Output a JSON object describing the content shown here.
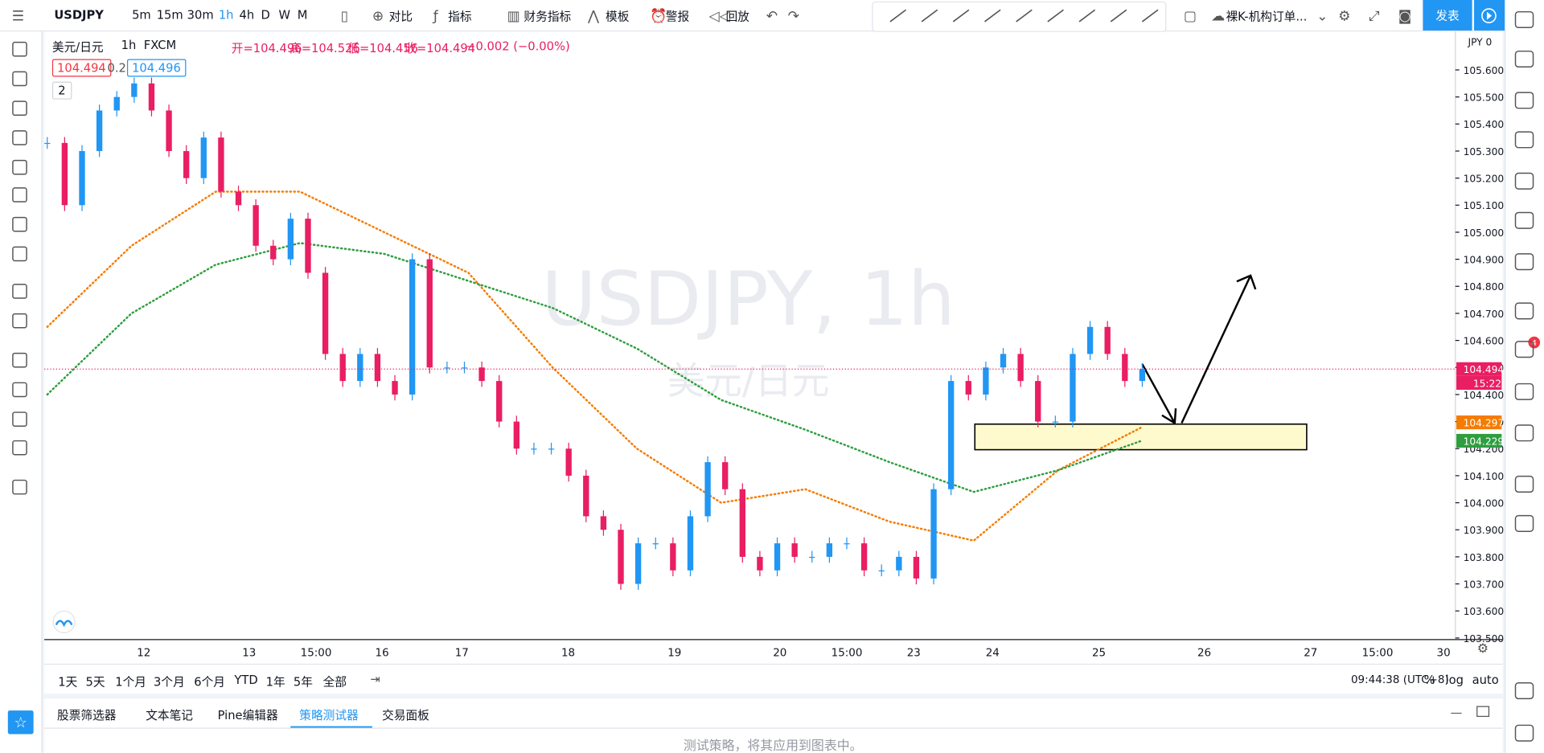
{
  "top_toolbar": {
    "symbol": "USDJPY",
    "intervals": [
      "5m",
      "15m",
      "30m",
      "1h",
      "4h",
      "D",
      "W",
      "M"
    ],
    "active_interval": 3,
    "buttons": [
      "对比",
      "指标",
      "财务指标",
      "模板",
      "警报",
      "回放"
    ],
    "layout_name": "裸K-机构订单...",
    "publish": "发表"
  },
  "legend": {
    "name": "美元/日元",
    "interval": "1h",
    "exchange": "FXCM",
    "ohlc": [
      "开=104.496",
      "高=104.526",
      "低=104.456",
      "收=104.494",
      "−0.002 (−0.00%)"
    ],
    "bid": "104.494",
    "spread": "0.2",
    "ask": "104.496",
    "indicators_toggle": "2"
  },
  "chart": {
    "type": "candlestick",
    "watermark": "USDJPY, 1h",
    "watermark_sub": "美元/日元",
    "currency": "JPY 0",
    "up_color": "#2196f3",
    "down_color": "#e91e63",
    "close": [
      105.33,
      105.1,
      105.3,
      105.45,
      105.5,
      105.55,
      105.45,
      105.3,
      105.2,
      105.35,
      105.15,
      105.1,
      104.95,
      104.9,
      105.05,
      104.85,
      104.55,
      104.45,
      104.55,
      104.45,
      104.4,
      104.9,
      104.5,
      104.5,
      104.5,
      104.45,
      104.3,
      104.2,
      104.2,
      104.2,
      104.1,
      103.95,
      103.9,
      103.7,
      103.85,
      103.85,
      103.75,
      103.95,
      104.15,
      104.05,
      103.8,
      103.75,
      103.85,
      103.8,
      103.8,
      103.85,
      103.85,
      103.75,
      103.75,
      103.8,
      103.72,
      104.05,
      104.45,
      104.4,
      104.5,
      104.55,
      104.45,
      104.3,
      104.3,
      104.55,
      104.65,
      104.55,
      104.45,
      104.494
    ],
    "ma_fast": {
      "color": "#f57c00",
      "values": [
        104.65,
        104.95,
        105.15,
        105.15,
        105.0,
        104.85,
        104.5,
        104.2,
        104.0,
        104.05,
        103.93,
        103.86,
        104.12,
        104.28
      ]
    },
    "ma_slow": {
      "color": "#2e9e3f",
      "values": [
        104.4,
        104.7,
        104.88,
        104.96,
        104.92,
        104.82,
        104.72,
        104.57,
        104.38,
        104.27,
        104.15,
        104.04,
        104.12,
        104.23
      ]
    },
    "ylim": [
      103.494,
      105.742
    ],
    "yticks": [
      {
        "value": 103.5,
        "label": "103.500"
      },
      {
        "value": 103.6,
        "label": "103.600"
      },
      {
        "value": 103.7,
        "label": "103.700"
      },
      {
        "value": 103.8,
        "label": "103.800"
      },
      {
        "value": 103.9,
        "label": "103.900"
      },
      {
        "value": 104.0,
        "label": "104.000"
      },
      {
        "value": 104.1,
        "label": "104.100"
      },
      {
        "value": 104.2,
        "label": "104.200"
      },
      {
        "value": 104.3,
        "label": "104.300"
      },
      {
        "value": 104.4,
        "label": "104.400"
      },
      {
        "value": 104.5,
        "label": "104.500"
      },
      {
        "value": 104.6,
        "label": "104.600"
      },
      {
        "value": 104.7,
        "label": "104.700"
      },
      {
        "value": 104.8,
        "label": "104.800"
      },
      {
        "value": 104.9,
        "label": "104.900"
      },
      {
        "value": 105.0,
        "label": "105.000"
      },
      {
        "value": 105.1,
        "label": "105.100"
      },
      {
        "value": 105.2,
        "label": "105.200"
      },
      {
        "value": 105.3,
        "label": "105.300"
      },
      {
        "value": 105.4,
        "label": "105.400"
      },
      {
        "value": 105.5,
        "label": "105.500"
      },
      {
        "value": 105.6,
        "label": "105.600"
      }
    ],
    "x_labels": [
      "12",
      "13",
      "15:00",
      "16",
      "17",
      "18",
      "19",
      "20",
      "15:00",
      "23",
      "24",
      "25",
      "26",
      "27",
      "15:00",
      "30"
    ],
    "last_price": 104.494,
    "countdown": "15:22",
    "ma_fast_price": 104.297,
    "ma_slow_price": 104.229
  },
  "bottom_bar": {
    "ranges": [
      "1天",
      "5天",
      "1个月",
      "3个月",
      "6个月",
      "YTD",
      "1年",
      "5年",
      "全部"
    ],
    "clock": "09:44:38 (UTC+8)",
    "scale_options": [
      "%",
      "log",
      "auto"
    ]
  },
  "panel": {
    "tabs": [
      "股票筛选器",
      "文本笔记",
      "Pine编辑器",
      "策略测试器",
      "交易面板"
    ],
    "active": 3,
    "message": "测试策略，将其应用到图表中。"
  },
  "notification_count": "4"
}
